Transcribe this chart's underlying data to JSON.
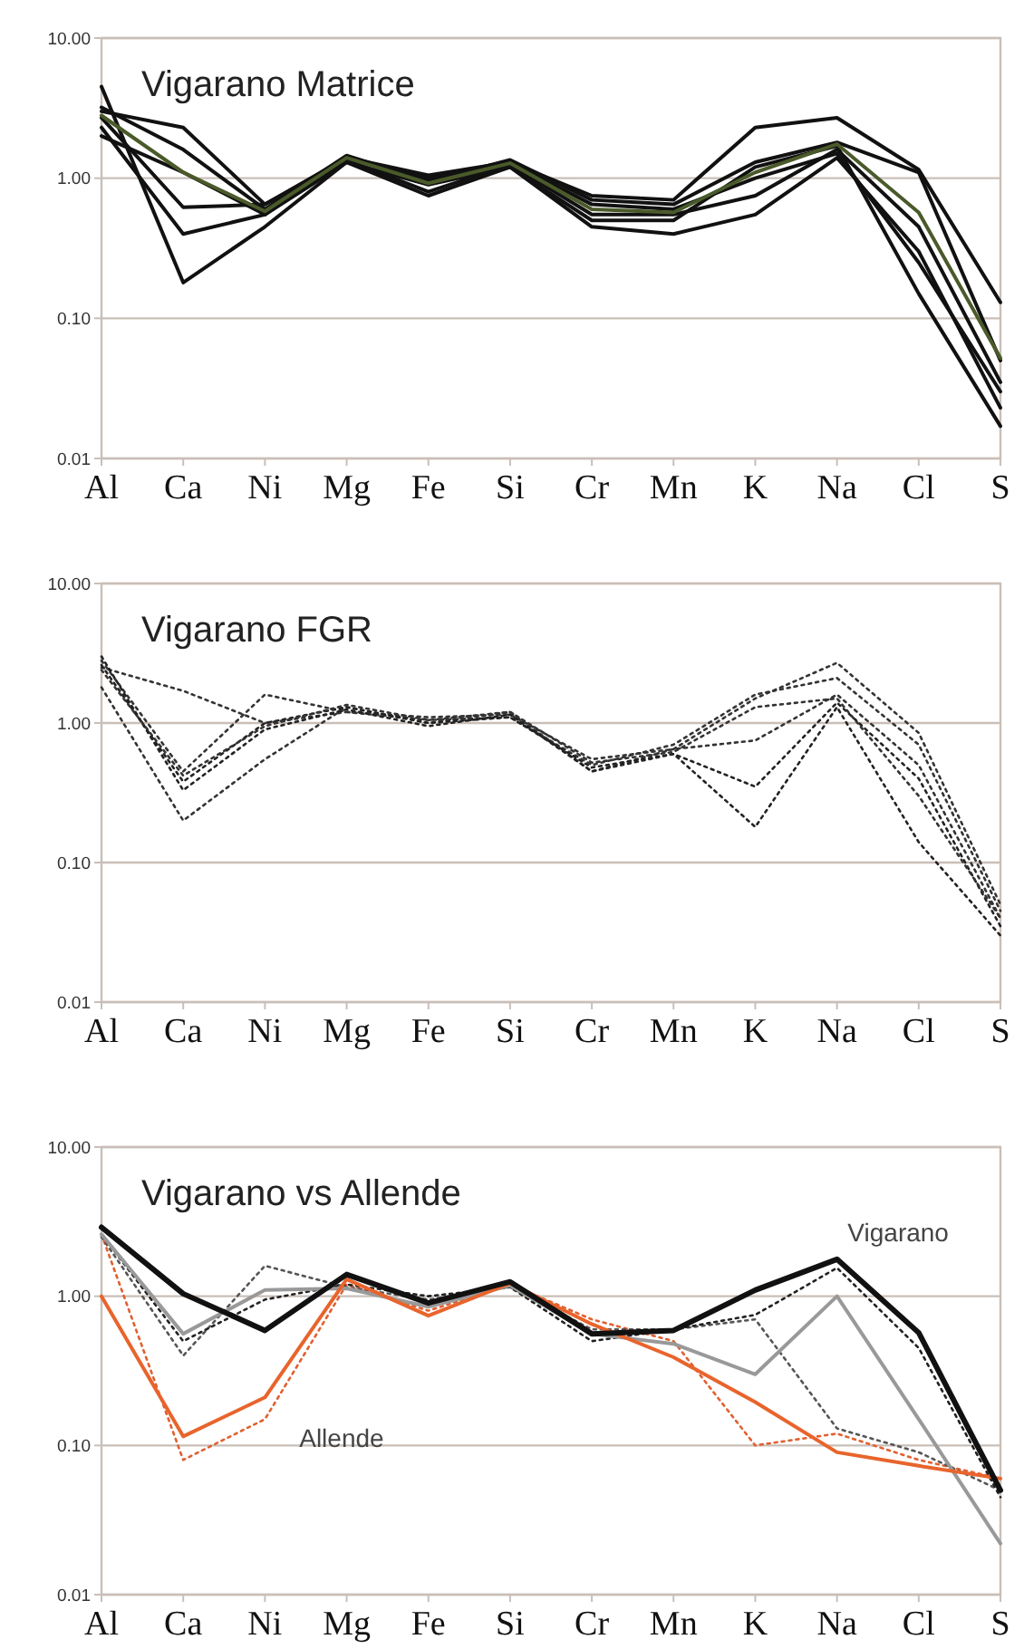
{
  "chart_data": [
    {
      "type": "line",
      "title": "Vigarano Matrice",
      "categories": [
        "Al",
        "Ca",
        "Ni",
        "Mg",
        "Fe",
        "Si",
        "Cr",
        "Mn",
        "K",
        "Na",
        "Cl",
        "S"
      ],
      "log": "y",
      "grid": "y",
      "line_style": "solid",
      "ylim": [
        0.01,
        10
      ],
      "yticks": [
        {
          "value": 0.01,
          "label": "0.01"
        },
        {
          "value": 0.1,
          "label": "0.10"
        },
        {
          "value": 1,
          "label": "1.00"
        },
        {
          "value": 10,
          "label": "10.00"
        }
      ],
      "series": [
        {
          "color": "#111111",
          "values": [
            3.0,
            2.3,
            0.65,
            1.4,
            1.05,
            1.3,
            0.75,
            0.7,
            2.3,
            2.7,
            1.15,
            0.13
          ]
        },
        {
          "color": "#111111",
          "values": [
            3.2,
            1.6,
            0.6,
            1.45,
            0.95,
            1.35,
            0.7,
            0.65,
            1.3,
            1.8,
            1.1,
            0.05
          ]
        },
        {
          "color": "#111111",
          "values": [
            2.7,
            0.62,
            0.65,
            1.35,
            0.8,
            1.25,
            0.55,
            0.55,
            0.75,
            1.6,
            0.45,
            0.035
          ]
        },
        {
          "color": "#111111",
          "values": [
            2.3,
            0.4,
            0.55,
            1.3,
            0.75,
            1.2,
            0.45,
            0.4,
            0.55,
            1.4,
            0.3,
            0.023
          ]
        },
        {
          "color": "#111111",
          "values": [
            4.5,
            0.18,
            0.45,
            1.3,
            0.9,
            1.2,
            0.5,
            0.5,
            1.2,
            1.7,
            0.15,
            0.017
          ]
        },
        {
          "color": "#111111",
          "values": [
            2.0,
            1.1,
            0.55,
            1.4,
            1.0,
            1.3,
            0.65,
            0.6,
            1.0,
            1.5,
            0.25,
            0.03
          ]
        },
        {
          "color": "#4a5a2a",
          "values": [
            2.8,
            1.1,
            0.58,
            1.4,
            0.92,
            1.28,
            0.6,
            0.57,
            1.1,
            1.75,
            0.57,
            0.052
          ]
        }
      ]
    },
    {
      "type": "line",
      "title": "Vigarano FGR",
      "categories": [
        "Al",
        "Ca",
        "Ni",
        "Mg",
        "Fe",
        "Si",
        "Cr",
        "Mn",
        "K",
        "Na",
        "Cl",
        "S"
      ],
      "log": "y",
      "grid": "y",
      "line_style": "dotted",
      "ylim": [
        0.01,
        10
      ],
      "yticks": [
        {
          "value": 0.01,
          "label": "0.01"
        },
        {
          "value": 0.1,
          "label": "0.10"
        },
        {
          "value": 1,
          "label": "1.00"
        },
        {
          "value": 10,
          "label": "10.00"
        }
      ],
      "series": [
        {
          "color": "#333333",
          "values": [
            2.5,
            1.7,
            1.0,
            1.2,
            1.1,
            1.15,
            0.55,
            0.65,
            1.5,
            2.7,
            0.85,
            0.05
          ]
        },
        {
          "color": "#333333",
          "values": [
            2.8,
            0.45,
            1.6,
            1.2,
            1.05,
            1.1,
            0.5,
            0.7,
            1.6,
            2.1,
            0.7,
            0.045
          ]
        },
        {
          "color": "#333333",
          "values": [
            1.8,
            0.2,
            0.55,
            1.3,
            1.0,
            1.2,
            0.45,
            0.65,
            0.75,
            1.6,
            0.5,
            0.04
          ]
        },
        {
          "color": "#222222",
          "values": [
            3.0,
            0.33,
            0.9,
            1.25,
            0.95,
            1.15,
            0.45,
            0.6,
            0.35,
            1.4,
            0.4,
            0.035
          ]
        },
        {
          "color": "#222222",
          "values": [
            2.6,
            0.38,
            1.0,
            1.3,
            1.0,
            1.1,
            0.48,
            0.6,
            0.18,
            1.3,
            0.14,
            0.03
          ]
        },
        {
          "color": "#333333",
          "values": [
            2.4,
            0.42,
            0.95,
            1.35,
            1.05,
            1.2,
            0.52,
            0.62,
            1.3,
            1.5,
            0.3,
            0.04
          ]
        }
      ]
    },
    {
      "type": "line",
      "title": "Vigarano vs Allende",
      "categories": [
        "Al",
        "Ca",
        "Ni",
        "Mg",
        "Fe",
        "Si",
        "Cr",
        "Mn",
        "K",
        "Na",
        "Cl",
        "S"
      ],
      "log": "y",
      "grid": "y",
      "ylim": [
        0.01,
        10
      ],
      "yticks": [
        {
          "value": 0.01,
          "label": "0.01"
        },
        {
          "value": 0.1,
          "label": "0.10"
        },
        {
          "value": 1,
          "label": "1.00"
        },
        {
          "value": 10,
          "label": "10.00"
        }
      ],
      "annotations": [
        "Vigarano",
        "Allende"
      ],
      "series": [
        {
          "color": "#e06030",
          "line_style": "dotted",
          "values": [
            2.6,
            0.08,
            0.15,
            1.2,
            0.8,
            1.2,
            0.7,
            0.5,
            0.1,
            0.12,
            0.08,
            0.06
          ]
        },
        {
          "color": "#555555",
          "line_style": "dotted",
          "values": [
            2.5,
            0.4,
            1.6,
            1.15,
            0.95,
            1.15,
            0.6,
            0.6,
            0.7,
            0.13,
            0.09,
            0.05
          ]
        },
        {
          "color": "#222222",
          "line_style": "dotted",
          "values": [
            2.6,
            0.5,
            0.95,
            1.2,
            1.0,
            1.15,
            0.5,
            0.6,
            0.75,
            1.55,
            0.45,
            0.045
          ]
        },
        {
          "color": "#999999",
          "line_style": "solid",
          "values": [
            2.6,
            0.56,
            1.1,
            1.13,
            0.85,
            1.18,
            0.56,
            0.48,
            0.3,
            1.0,
            0.15,
            0.022
          ]
        },
        {
          "color": "#e8642c",
          "line_style": "solid",
          "values": [
            1.0,
            0.115,
            0.21,
            1.3,
            0.74,
            1.22,
            0.65,
            0.39,
            0.195,
            0.09,
            0.073,
            0.06
          ]
        },
        {
          "color": "#111111",
          "line_style": "solid",
          "values": [
            2.9,
            1.04,
            0.59,
            1.4,
            0.9,
            1.25,
            0.56,
            0.59,
            1.1,
            1.77,
            0.57,
            0.05
          ]
        }
      ]
    }
  ]
}
